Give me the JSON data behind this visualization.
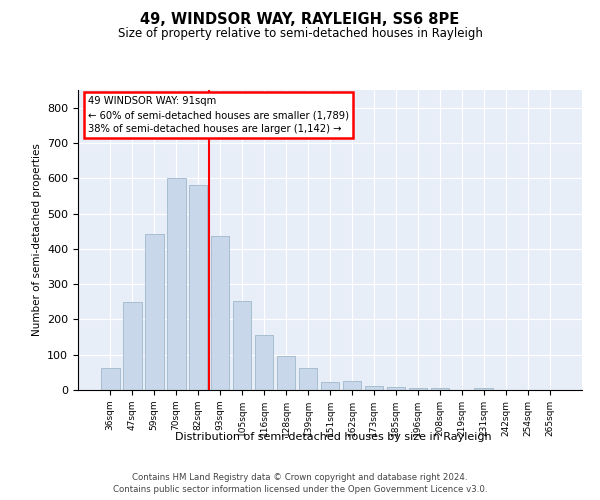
{
  "title": "49, WINDSOR WAY, RAYLEIGH, SS6 8PE",
  "subtitle": "Size of property relative to semi-detached houses in Rayleigh",
  "xlabel": "Distribution of semi-detached houses by size in Rayleigh",
  "ylabel": "Number of semi-detached properties",
  "categories": [
    "36sqm",
    "47sqm",
    "59sqm",
    "70sqm",
    "82sqm",
    "93sqm",
    "105sqm",
    "116sqm",
    "128sqm",
    "139sqm",
    "151sqm",
    "162sqm",
    "173sqm",
    "185sqm",
    "196sqm",
    "208sqm",
    "219sqm",
    "231sqm",
    "242sqm",
    "254sqm",
    "265sqm"
  ],
  "values": [
    63,
    248,
    442,
    600,
    580,
    437,
    253,
    157,
    97,
    63,
    22,
    25,
    10,
    9,
    5,
    7,
    0,
    5,
    0,
    0,
    0
  ],
  "bar_color": "#c8d8ea",
  "bar_edge_color": "#a0b8cc",
  "vline_color": "red",
  "vline_pos": 4.5,
  "annotation_title": "49 WINDSOR WAY: 91sqm",
  "annotation_line1": "← 60% of semi-detached houses are smaller (1,789)",
  "annotation_line2": "38% of semi-detached houses are larger (1,142) →",
  "annotation_box_color": "white",
  "annotation_box_edge_color": "red",
  "ylim": [
    0,
    850
  ],
  "yticks": [
    0,
    100,
    200,
    300,
    400,
    500,
    600,
    700,
    800
  ],
  "background_color": "#e8eef8",
  "footer_line1": "Contains HM Land Registry data © Crown copyright and database right 2024.",
  "footer_line2": "Contains public sector information licensed under the Open Government Licence v3.0."
}
